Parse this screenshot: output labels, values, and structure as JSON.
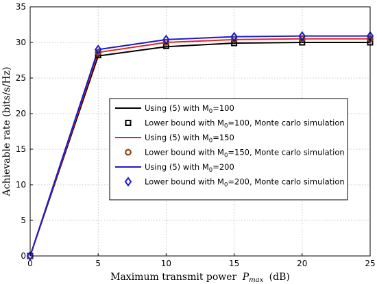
{
  "chart_data": {
    "type": "line",
    "title": "",
    "xlabel": "Maximum transmit power",
    "xlabel_symbol": "P",
    "xlabel_symbol_sub": "max",
    "xlabel_unit": "(dB)",
    "ylabel": "Achievable rate (bits/s/Hz)",
    "xlim": [
      0,
      25
    ],
    "ylim": [
      0,
      35
    ],
    "xticks": [
      0,
      5,
      10,
      15,
      20,
      25
    ],
    "yticks": [
      0,
      5,
      10,
      15,
      20,
      25,
      30,
      35
    ],
    "grid": true,
    "legend_position": "center-right",
    "x": [
      0,
      5,
      10,
      15,
      20,
      25
    ],
    "series": [
      {
        "name": "Using (5) with M0=100",
        "kind": "line",
        "color": "#000000",
        "values": [
          0,
          28.1,
          29.4,
          29.9,
          30.0,
          30.0
        ]
      },
      {
        "name": "Lower bound with M0=100, Monte carlo simulation",
        "kind": "marker",
        "marker": "square",
        "color": "#000000",
        "values": [
          0,
          28.2,
          29.5,
          29.9,
          30.0,
          30.0
        ]
      },
      {
        "name": "Using (5) with M0=150",
        "kind": "line",
        "color": "#e8221c",
        "values": [
          0,
          28.6,
          30.0,
          30.4,
          30.5,
          30.5
        ]
      },
      {
        "name": "Lower bound with M0=150, Monte carlo simulation",
        "kind": "marker",
        "marker": "circle",
        "color": "#8b4513",
        "values": [
          0,
          28.6,
          30.0,
          30.4,
          30.5,
          30.5
        ]
      },
      {
        "name": "Using (5) with M0=200",
        "kind": "line",
        "color": "#1a1acc",
        "values": [
          0,
          29.0,
          30.4,
          30.8,
          30.9,
          30.9
        ]
      },
      {
        "name": "Lower bound with M0=200, Monte carlo simulation",
        "kind": "marker",
        "marker": "diamond",
        "color": "#1a1acc",
        "values": [
          0,
          29.0,
          30.4,
          30.8,
          30.9,
          30.9
        ]
      }
    ],
    "legend": [
      {
        "prefix": "Using (5) with M",
        "sub": "0",
        "suffix": "=100"
      },
      {
        "prefix": "Lower bound with M",
        "sub": "0",
        "suffix": "=100, Monte carlo simulation"
      },
      {
        "prefix": "Using (5) with M",
        "sub": "0",
        "suffix": "=150"
      },
      {
        "prefix": " Lower bound with M",
        "sub": "0",
        "suffix": "=150, Monte carlo simulation"
      },
      {
        "prefix": "Using (5) with M",
        "sub": "0",
        "suffix": "=200"
      },
      {
        "prefix": "Lower bound with M",
        "sub": "0",
        "suffix": "=200, Monte carlo simulation"
      }
    ]
  }
}
